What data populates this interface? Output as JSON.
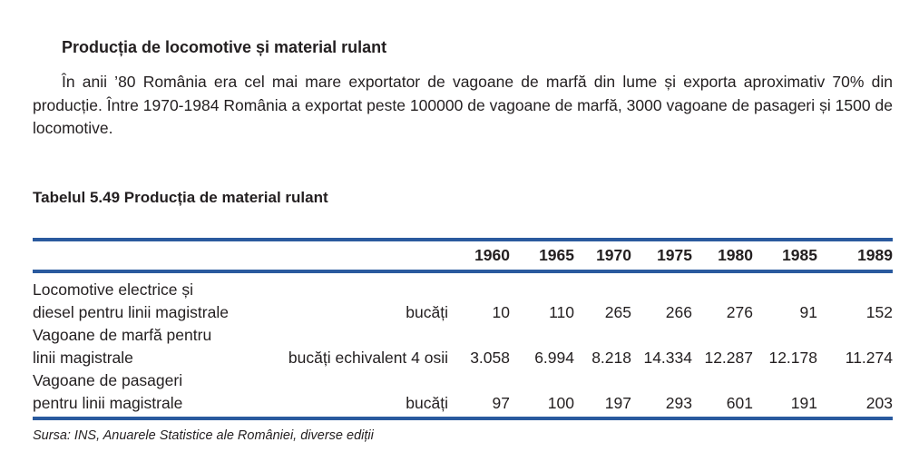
{
  "section": {
    "title": "Producția de locomotive și material rulant",
    "paragraph": "În anii ’80 România era cel mai mare exportator de vagoane de marfă din lume și exporta aproximativ 70% din producție. Între 1970-1984 România a exportat peste 100000 de vagoane de marfă, 3000 vagoane de pasageri și 1500 de locomotive."
  },
  "table": {
    "title": "Tabelul 5.49 Producția de material rulant",
    "years": [
      "1960",
      "1965",
      "1970",
      "1975",
      "1980",
      "1985",
      "1989"
    ],
    "rows": [
      {
        "label_line1": "Locomotive electrice și",
        "label_line2": "diesel pentru linii magistrale",
        "unit": "bucăți",
        "values": [
          "10",
          "110",
          "265",
          "266",
          "276",
          "91",
          "152"
        ]
      },
      {
        "label_line1": "Vagoane de marfă pentru",
        "label_line2": "linii magistrale",
        "unit": "bucăți echivalent 4 osii",
        "values": [
          "3.058",
          "6.994",
          "8.218",
          "14.334",
          "12.287",
          "12.178",
          "11.274"
        ]
      },
      {
        "label_line1": "Vagoane de pasageri",
        "label_line2": "pentru linii magistrale",
        "unit": "bucăți",
        "values": [
          "97",
          "100",
          "197",
          "293",
          "601",
          "191",
          "203"
        ]
      }
    ],
    "source": "Sursa: INS, Anuarele Statistice ale României, diverse ediții"
  },
  "colors": {
    "rule": "#2a5a9e",
    "text": "#231f20"
  }
}
